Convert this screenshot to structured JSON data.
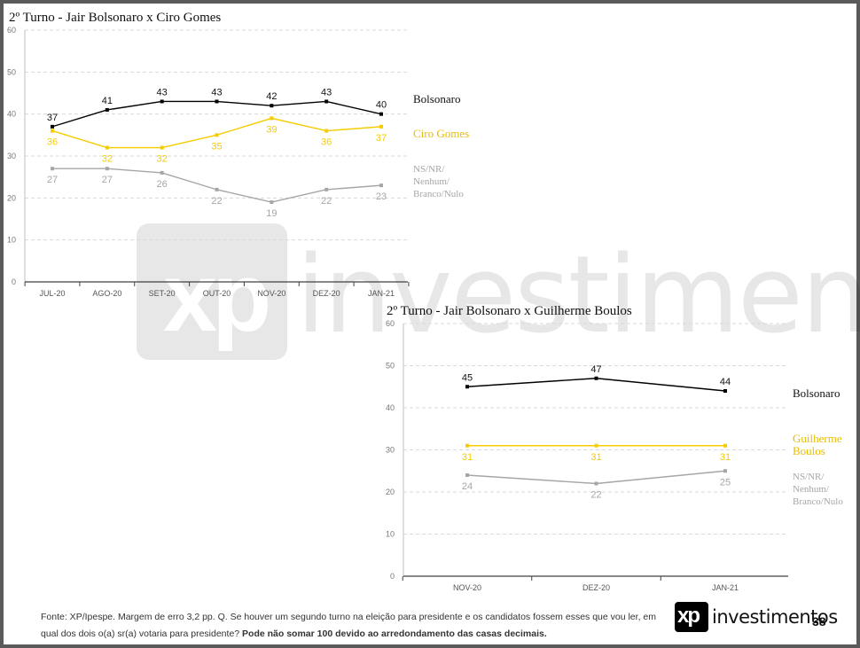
{
  "page": {
    "footer_text": "Fonte: XP/Ipespe. Margem de erro 3,2 pp. Q. Se houver um segundo turno na eleição para presidente e os candidatos fossem esses que vou ler, em qual dos dois o(a) sr(a) votaria para presidente?",
    "footer_bold": "Pode não somar 100 devido ao arredondamento das casas decimais.",
    "logo_xp": "xp",
    "logo_text": "investimentos",
    "watermark_xp": "xp",
    "watermark_text": "investimentos",
    "page_number": "38"
  },
  "chart_data": [
    {
      "type": "line",
      "title": "2º Turno - Jair Bolsonaro x Ciro Gomes",
      "categories": [
        "JUL-20",
        "AGO-20",
        "SET-20",
        "OUT-20",
        "NOV-20",
        "DEZ-20",
        "JAN-21"
      ],
      "ylim": [
        0,
        60
      ],
      "yticks": [
        "0",
        "10",
        "20",
        "30",
        "40",
        "50",
        "60"
      ],
      "grid": true,
      "legend": "right",
      "series": [
        {
          "name": "Bolsonaro",
          "color": "#000000",
          "values": [
            37,
            41,
            43,
            43,
            42,
            43,
            40
          ],
          "labels": [
            "37",
            "41",
            "43",
            "43",
            "42",
            "43",
            "40"
          ],
          "label_pos": "above"
        },
        {
          "name": "Ciro Gomes",
          "color": "#f5cc00",
          "values": [
            36,
            32,
            32,
            35,
            39,
            36,
            37
          ],
          "labels": [
            "36",
            "32",
            "32",
            "35",
            "39",
            "36",
            "37"
          ],
          "label_pos": "below"
        },
        {
          "name": "NS/NR/ Nenhum/ Branco/Nulo",
          "name_lines": [
            "NS/NR/",
            "Nenhum/",
            "Branco/Nulo"
          ],
          "color": "#a6a6a6",
          "values": [
            27,
            27,
            26,
            22,
            19,
            22,
            23
          ],
          "labels": [
            "27",
            "27",
            "26",
            "22",
            "19",
            "22",
            "23"
          ],
          "label_pos": "below"
        }
      ]
    },
    {
      "type": "line",
      "title": "2º Turno - Jair Bolsonaro x Guilherme Boulos",
      "categories": [
        "NOV-20",
        "DEZ-20",
        "JAN-21"
      ],
      "ylim": [
        0,
        60
      ],
      "yticks": [
        "0",
        "10",
        "20",
        "30",
        "40",
        "50",
        "60"
      ],
      "grid": true,
      "legend": "right",
      "series": [
        {
          "name": "Bolsonaro",
          "color": "#000000",
          "values": [
            45,
            47,
            44
          ],
          "labels": [
            "45",
            "47",
            "44"
          ],
          "label_pos": "above"
        },
        {
          "name": "Guilherme Boulos",
          "name_lines": [
            "Guilherme",
            "Boulos"
          ],
          "color": "#f5cc00",
          "values": [
            31,
            31,
            31
          ],
          "labels": [
            "31",
            "31",
            "31"
          ],
          "label_pos": "below"
        },
        {
          "name": "NS/NR/ Nenhum/ Branco/Nulo",
          "name_lines": [
            "NS/NR/",
            "Nenhum/",
            "Branco/Nulo"
          ],
          "color": "#a6a6a6",
          "values": [
            24,
            22,
            25
          ],
          "labels": [
            "24",
            "22",
            "25"
          ],
          "label_pos": "below"
        }
      ]
    }
  ]
}
